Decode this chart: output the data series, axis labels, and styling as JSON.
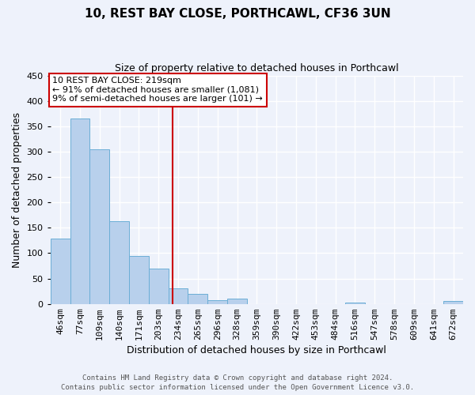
{
  "title": "10, REST BAY CLOSE, PORTHCAWL, CF36 3UN",
  "subtitle": "Size of property relative to detached houses in Porthcawl",
  "xlabel": "Distribution of detached houses by size in Porthcawl",
  "ylabel": "Number of detached properties",
  "bar_labels": [
    "46sqm",
    "77sqm",
    "109sqm",
    "140sqm",
    "171sqm",
    "203sqm",
    "234sqm",
    "265sqm",
    "296sqm",
    "328sqm",
    "359sqm",
    "390sqm",
    "422sqm",
    "453sqm",
    "484sqm",
    "516sqm",
    "547sqm",
    "578sqm",
    "609sqm",
    "641sqm",
    "672sqm"
  ],
  "bar_values": [
    128,
    365,
    305,
    163,
    95,
    70,
    30,
    20,
    8,
    10,
    0,
    0,
    0,
    0,
    0,
    3,
    0,
    0,
    0,
    0,
    5
  ],
  "bar_color": "#b8d0ec",
  "bar_edge_color": "#6baed6",
  "vline_x_index": 5.72,
  "vline_color": "#cc0000",
  "annotation_title": "10 REST BAY CLOSE: 219sqm",
  "annotation_line1": "← 91% of detached houses are smaller (1,081)",
  "annotation_line2": "9% of semi-detached houses are larger (101) →",
  "annotation_box_color": "#ffffff",
  "annotation_box_edge": "#cc0000",
  "ylim": [
    0,
    450
  ],
  "yticks": [
    0,
    50,
    100,
    150,
    200,
    250,
    300,
    350,
    400,
    450
  ],
  "footer1": "Contains HM Land Registry data © Crown copyright and database right 2024.",
  "footer2": "Contains public sector information licensed under the Open Government Licence v3.0.",
  "bg_color": "#eef2fb",
  "grid_color": "#ffffff",
  "title_fontsize": 11,
  "subtitle_fontsize": 9,
  "ylabel_fontsize": 9,
  "xlabel_fontsize": 9,
  "tick_fontsize": 8,
  "annotation_fontsize": 8,
  "footer_fontsize": 6.5
}
